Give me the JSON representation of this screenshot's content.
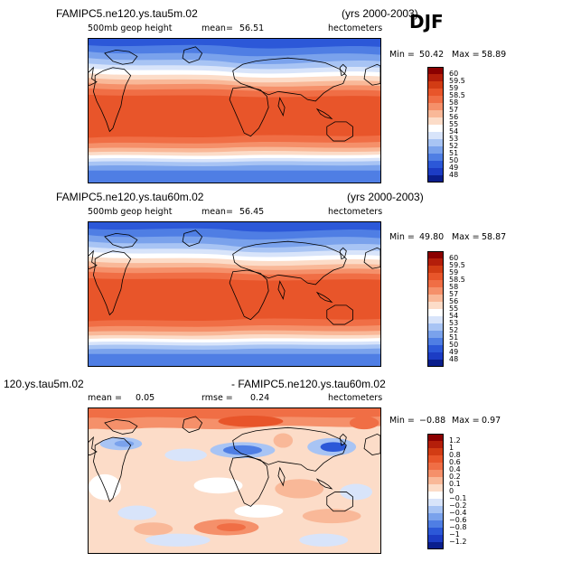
{
  "season": "DJF",
  "panels": [
    {
      "title_left": "FAMIPC5.ne120.ys.tau5m.02",
      "title_right": "(yrs 2000-2003)",
      "field_label": "500mb geop height",
      "mean_label": "mean=",
      "mean_value": "56.51",
      "units": "hectometers",
      "min_label": "Min =",
      "min_value": "50.42",
      "max_label": "Max =",
      "max_value": "58.89",
      "colorbar_labels": [
        "60",
        "59.5",
        "59",
        "58.5",
        "58",
        "57",
        "56",
        "55",
        "54",
        "53",
        "52",
        "51",
        "50",
        "49",
        "48"
      ],
      "colorbar_colors": [
        "#8b0000",
        "#b41e0a",
        "#d23c14",
        "#e8552a",
        "#f06e45",
        "#f5906a",
        "#f9b898",
        "#fcdcc8",
        "#ffffff",
        "#d8e4fa",
        "#a8c4f4",
        "#7aa2ec",
        "#4f7ee4",
        "#2c58d8",
        "#1c3cc4",
        "#0a1e8c"
      ]
    },
    {
      "title_left": "FAMIPC5.ne120.ys.tau60m.02",
      "title_right": "(yrs 2000-2003)",
      "field_label": "500mb geop height",
      "mean_label": "mean=",
      "mean_value": "56.45",
      "units": "hectometers",
      "min_label": "Min =",
      "min_value": "49.80",
      "max_label": "Max =",
      "max_value": "58.87",
      "colorbar_labels": [
        "60",
        "59.5",
        "59",
        "58.5",
        "58",
        "57",
        "56",
        "55",
        "54",
        "53",
        "52",
        "51",
        "50",
        "49",
        "48"
      ],
      "colorbar_colors": [
        "#8b0000",
        "#b41e0a",
        "#d23c14",
        "#e8552a",
        "#f06e45",
        "#f5906a",
        "#f9b898",
        "#fcdcc8",
        "#ffffff",
        "#d8e4fa",
        "#a8c4f4",
        "#7aa2ec",
        "#4f7ee4",
        "#2c58d8",
        "#1c3cc4",
        "#0a1e8c"
      ]
    },
    {
      "title_left": "120.ys.tau5m.02",
      "title_right": "- FAMIPC5.ne120.ys.tau60m.02",
      "mean_label": "mean =",
      "mean_value": "0.05",
      "rmse_label": "rmse =",
      "rmse_value": "0.24",
      "units": "hectometers",
      "min_label": "Min =",
      "min_value": "−0.88",
      "max_label": "Max =",
      "max_value": "0.97",
      "colorbar_labels": [
        "1.2",
        "1",
        "0.8",
        "0.6",
        "0.4",
        "0.2",
        "0.1",
        "0",
        "−0.1",
        "−0.2",
        "−0.4",
        "−0.6",
        "−0.8",
        "−1",
        "−1.2"
      ],
      "colorbar_colors": [
        "#8b0000",
        "#b41e0a",
        "#d23c14",
        "#e8552a",
        "#f06e45",
        "#f5906a",
        "#f9b898",
        "#fcdcc8",
        "#ffffff",
        "#d8e4fa",
        "#a8c4f4",
        "#7aa2ec",
        "#4f7ee4",
        "#2c58d8",
        "#1c3cc4",
        "#0a1e8c"
      ]
    }
  ]
}
